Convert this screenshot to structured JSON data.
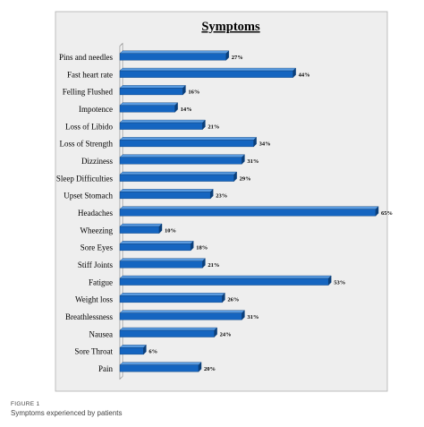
{
  "figure": {
    "label": "FIGURE 1",
    "caption": "Symptoms experienced by patients"
  },
  "chart_data": {
    "type": "bar",
    "orientation": "horizontal",
    "title": "Symptoms",
    "categories": [
      "Pins and needles",
      "Fast heart rate",
      "Felling Flushed",
      "Impotence",
      "Loss of Libido",
      "Loss of Strength",
      "Dizziness",
      "Sleep Difficulties",
      "Upset Stomach",
      "Headaches",
      "Wheezing",
      "Sore Eyes",
      "Stiff Joints",
      "Fatigue",
      "Weight loss",
      "Breathlessness",
      "Nausea",
      "Sore Throat",
      "Pain"
    ],
    "values": [
      27,
      44,
      16,
      14,
      21,
      34,
      31,
      29,
      23,
      65,
      10,
      18,
      21,
      53,
      26,
      31,
      24,
      6,
      20
    ],
    "value_labels": [
      "27%",
      "44%",
      "16%",
      "14%",
      "21%",
      "34%",
      "31%",
      "29%",
      "23%",
      "65%",
      "10%",
      "18%",
      "21%",
      "53%",
      "26%",
      "31%",
      "24%",
      "6%",
      "20%"
    ],
    "xlim": [
      0,
      65
    ],
    "grid": false,
    "legend": "none",
    "colors": {
      "bar": "#1565c0",
      "bar_top": "#5a9be0",
      "bar_dark": "#0b3f7a",
      "plot_background": "#eeeeee",
      "wall": "#fafafa"
    }
  }
}
